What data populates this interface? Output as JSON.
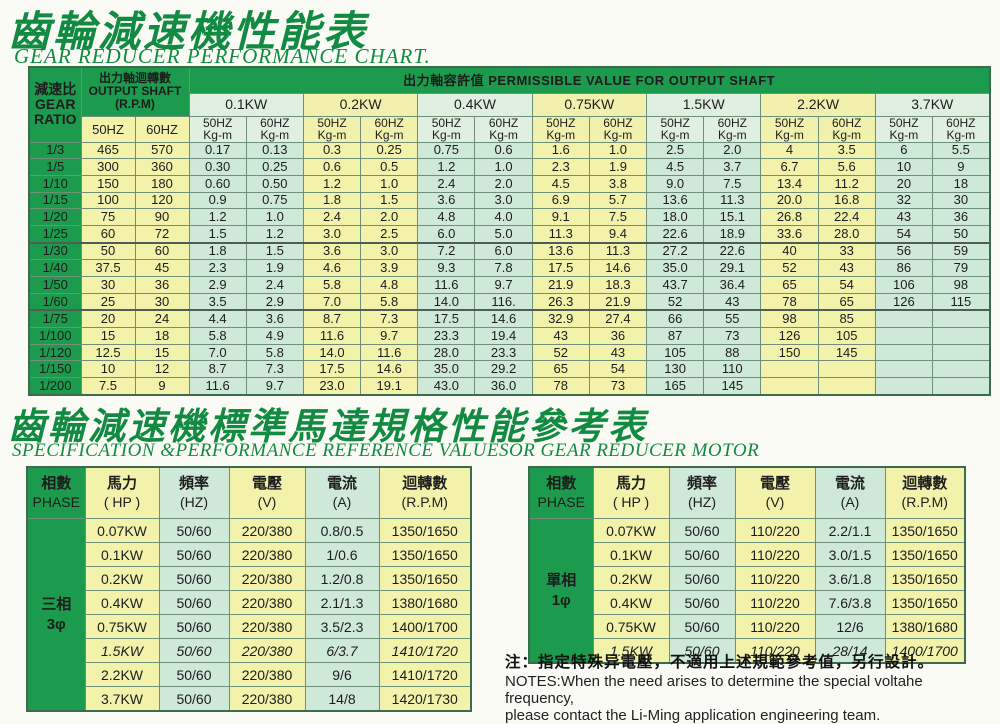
{
  "table1": {
    "title_zh": "齒輪減速機性能表",
    "title_en": "GEAR REDUCER PERFORMANCE CHART.",
    "header": {
      "ratio_zh": "減速比",
      "ratio_en1": "GEAR",
      "ratio_en2": "RATIO",
      "output_zh": "出力軸迴轉數",
      "output_en": "OUTPUT SHAFT",
      "output_rpm": "(R.P.M)",
      "permissible": "出力軸容許值 PERMISSIBLE VALUE FOR OUTPUT SHAFT",
      "hz50": "50HZ",
      "hz60": "60HZ",
      "kgm": "Kg-m",
      "kw_groups": [
        "0.1KW",
        "0.2KW",
        "0.4KW",
        "0.75KW",
        "1.5KW",
        "2.2KW",
        "3.7KW"
      ]
    },
    "rows": [
      {
        "ratio": "1/3",
        "rpm": [
          "465",
          "570"
        ],
        "values": [
          "0.17",
          "0.13",
          "0.3",
          "0.25",
          "0.75",
          "0.6",
          "1.6",
          "1.0",
          "2.5",
          "2.0",
          "4",
          "3.5",
          "6",
          "5.5"
        ]
      },
      {
        "ratio": "1/5",
        "rpm": [
          "300",
          "360"
        ],
        "values": [
          "0.30",
          "0.25",
          "0.6",
          "0.5",
          "1.2",
          "1.0",
          "2.3",
          "1.9",
          "4.5",
          "3.7",
          "6.7",
          "5.6",
          "10",
          "9"
        ]
      },
      {
        "ratio": "1/10",
        "rpm": [
          "150",
          "180"
        ],
        "values": [
          "0.60",
          "0.50",
          "1.2",
          "1.0",
          "2.4",
          "2.0",
          "4.5",
          "3.8",
          "9.0",
          "7.5",
          "13.4",
          "11.2",
          "20",
          "18"
        ]
      },
      {
        "ratio": "1/15",
        "rpm": [
          "100",
          "120"
        ],
        "values": [
          "0.9",
          "0.75",
          "1.8",
          "1.5",
          "3.6",
          "3.0",
          "6.9",
          "5.7",
          "13.6",
          "11.3",
          "20.0",
          "16.8",
          "32",
          "30"
        ]
      },
      {
        "ratio": "1/20",
        "rpm": [
          "75",
          "90"
        ],
        "values": [
          "1.2",
          "1.0",
          "2.4",
          "2.0",
          "4.8",
          "4.0",
          "9.1",
          "7.5",
          "18.0",
          "15.1",
          "26.8",
          "22.4",
          "43",
          "36"
        ]
      },
      {
        "ratio": "1/25",
        "rpm": [
          "60",
          "72"
        ],
        "values": [
          "1.5",
          "1.2",
          "3.0",
          "2.5",
          "6.0",
          "5.0",
          "11.3",
          "9.4",
          "22.6",
          "18.9",
          "33.6",
          "28.0",
          "54",
          "50"
        ]
      },
      {
        "ratio": "1/30",
        "rpm": [
          "50",
          "60"
        ],
        "values": [
          "1.8",
          "1.5",
          "3.6",
          "3.0",
          "7.2",
          "6.0",
          "13.6",
          "11.3",
          "27.2",
          "22.6",
          "40",
          "33",
          "56",
          "59"
        ]
      },
      {
        "ratio": "1/40",
        "rpm": [
          "37.5",
          "45"
        ],
        "values": [
          "2.3",
          "1.9",
          "4.6",
          "3.9",
          "9.3",
          "7.8",
          "17.5",
          "14.6",
          "35.0",
          "29.1",
          "52",
          "43",
          "86",
          "79"
        ]
      },
      {
        "ratio": "1/50",
        "rpm": [
          "30",
          "36"
        ],
        "values": [
          "2.9",
          "2.4",
          "5.8",
          "4.8",
          "11.6",
          "9.7",
          "21.9",
          "18.3",
          "43.7",
          "36.4",
          "65",
          "54",
          "106",
          "98"
        ]
      },
      {
        "ratio": "1/60",
        "rpm": [
          "25",
          "30"
        ],
        "values": [
          "3.5",
          "2.9",
          "7.0",
          "5.8",
          "14.0",
          "116.",
          "26.3",
          "21.9",
          "52",
          "43",
          "78",
          "65",
          "126",
          "115"
        ]
      },
      {
        "ratio": "1/75",
        "rpm": [
          "20",
          "24"
        ],
        "values": [
          "4.4",
          "3.6",
          "8.7",
          "7.3",
          "17.5",
          "14.6",
          "32.9",
          "27.4",
          "66",
          "55",
          "98",
          "85",
          "",
          ""
        ]
      },
      {
        "ratio": "1/100",
        "rpm": [
          "15",
          "18"
        ],
        "values": [
          "5.8",
          "4.9",
          "11.6",
          "9.7",
          "23.3",
          "19.4",
          "43",
          "36",
          "87",
          "73",
          "126",
          "105",
          "",
          ""
        ]
      },
      {
        "ratio": "1/120",
        "rpm": [
          "12.5",
          "15"
        ],
        "values": [
          "7.0",
          "5.8",
          "14.0",
          "11.6",
          "28.0",
          "23.3",
          "52",
          "43",
          "105",
          "88",
          "150",
          "145",
          "",
          ""
        ]
      },
      {
        "ratio": "1/150",
        "rpm": [
          "10",
          "12"
        ],
        "values": [
          "8.7",
          "7.3",
          "17.5",
          "14.6",
          "35.0",
          "29.2",
          "65",
          "54",
          "130",
          "110",
          "",
          "",
          "",
          ""
        ]
      },
      {
        "ratio": "1/200",
        "rpm": [
          "7.5",
          "9"
        ],
        "values": [
          "11.6",
          "9.7",
          "23.0",
          "19.1",
          "43.0",
          "36.0",
          "78",
          "73",
          "165",
          "145",
          "",
          "",
          "",
          ""
        ]
      }
    ]
  },
  "table2": {
    "title_zh": "齒輪減速機標準馬達規格性能參考表",
    "title_en": "SPECIFICATION &PERFORMANCE REFERENCE VALUESOR GEAR REDUCER MOTOR",
    "columns": {
      "phase_zh": "相數",
      "phase_en": "PHASE",
      "hp_zh": "馬力",
      "hp_unit": "( HP )",
      "hz_zh": "頻率",
      "hz_unit": "(HZ)",
      "v_zh": "電壓",
      "v_unit": "(V)",
      "a_zh": "電流",
      "a_unit": "(A)",
      "rpm_zh": "迴轉數",
      "rpm_unit": "(R.P.M)"
    },
    "left": {
      "phase_zh": "三相",
      "phase_sym": "3φ",
      "rows": [
        {
          "hp": "0.07KW",
          "hz": "50/60",
          "v": "220/380",
          "a": "0.8/0.5",
          "rpm": "1350/1650"
        },
        {
          "hp": "0.1KW",
          "hz": "50/60",
          "v": "220/380",
          "a": "1/0.6",
          "rpm": "1350/1650"
        },
        {
          "hp": "0.2KW",
          "hz": "50/60",
          "v": "220/380",
          "a": "1.2/0.8",
          "rpm": "1350/1650"
        },
        {
          "hp": "0.4KW",
          "hz": "50/60",
          "v": "220/380",
          "a": "2.1/1.3",
          "rpm": "1380/1680"
        },
        {
          "hp": "0.75KW",
          "hz": "50/60",
          "v": "220/380",
          "a": "3.5/2.3",
          "rpm": "1400/1700"
        },
        {
          "hp": "1.5KW",
          "hz": "50/60",
          "v": "220/380",
          "a": "6/3.7",
          "rpm": "1410/1720",
          "italic": true
        },
        {
          "hp": "2.2KW",
          "hz": "50/60",
          "v": "220/380",
          "a": "9/6",
          "rpm": "1410/1720"
        },
        {
          "hp": "3.7KW",
          "hz": "50/60",
          "v": "220/380",
          "a": "14/8",
          "rpm": "1420/1730"
        }
      ]
    },
    "right": {
      "phase_zh": "單相",
      "phase_sym": "1φ",
      "rows": [
        {
          "hp": "0.07KW",
          "hz": "50/60",
          "v": "110/220",
          "a": "2.2/1.1",
          "rpm": "1350/1650"
        },
        {
          "hp": "0.1KW",
          "hz": "50/60",
          "v": "110/220",
          "a": "3.0/1.5",
          "rpm": "1350/1650"
        },
        {
          "hp": "0.2KW",
          "hz": "50/60",
          "v": "110/220",
          "a": "3.6/1.8",
          "rpm": "1350/1650"
        },
        {
          "hp": "0.4KW",
          "hz": "50/60",
          "v": "110/220",
          "a": "7.6/3.8",
          "rpm": "1350/1650"
        },
        {
          "hp": "0.75KW",
          "hz": "50/60",
          "v": "110/220",
          "a": "12/6",
          "rpm": "1380/1680"
        },
        {
          "hp": "1.5KW",
          "hz": "50/60",
          "v": "110/220",
          "a": "28/14",
          "rpm": "1400/1700",
          "italic": true
        }
      ]
    }
  },
  "notes": {
    "zh": "注：指定特殊异電壓，不適用上述規範參考值，另行設計。",
    "en1": "NOTES:When the need arises to determine the special voltahe frequency,",
    "en2": "please contact the Li-Ming application engineering team."
  },
  "colors": {
    "title_green": "#128a42",
    "header_green": "#1c9a4d",
    "cell_yellow": "#f2f2ab",
    "cell_pale_green": "#cfe9d8"
  }
}
